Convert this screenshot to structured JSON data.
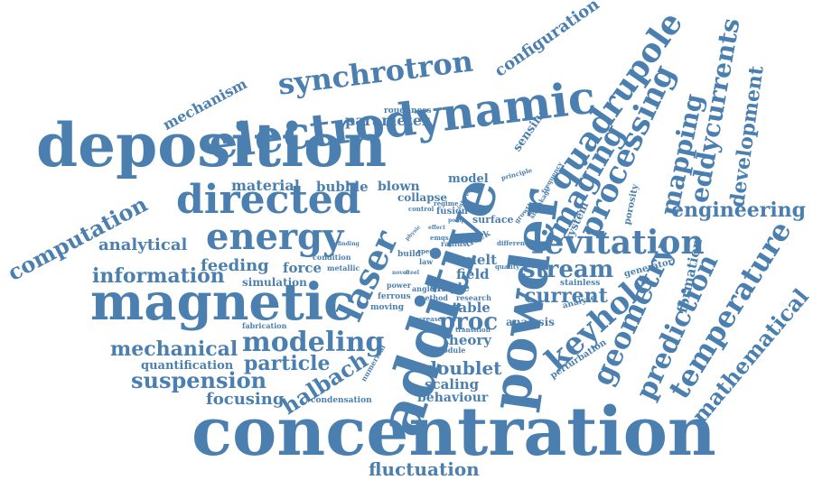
{
  "color": "#4a7fb0",
  "words": [
    {
      "text": "concentration",
      "size": 74
    },
    {
      "text": "deposition",
      "size": 66
    },
    {
      "text": "additive",
      "size": 66
    },
    {
      "text": "magnetic",
      "size": 56
    },
    {
      "text": "powder",
      "size": 60
    },
    {
      "text": "electrodynamic",
      "size": 50
    },
    {
      "text": "directed",
      "size": 44
    },
    {
      "text": "energy",
      "size": 40
    },
    {
      "text": "laser",
      "size": 38
    },
    {
      "text": "levitation",
      "size": 36
    },
    {
      "text": "quadrupole",
      "size": 36
    },
    {
      "text": "processing",
      "size": 34
    },
    {
      "text": "imaging",
      "size": 32
    },
    {
      "text": "synchrotron",
      "size": 32
    },
    {
      "text": "keyhole",
      "size": 34
    },
    {
      "text": "geometry",
      "size": 32
    },
    {
      "text": "temperature",
      "size": 32
    },
    {
      "text": "prediction",
      "size": 30
    },
    {
      "text": "modeling",
      "size": 30
    },
    {
      "text": "stream",
      "size": 26
    },
    {
      "text": "proc",
      "size": 26
    },
    {
      "text": "computation",
      "size": 24
    },
    {
      "text": "mapping",
      "size": 28
    },
    {
      "text": "eddycurrents",
      "size": 28
    },
    {
      "text": "mathematical",
      "size": 24
    },
    {
      "text": "development",
      "size": 22
    },
    {
      "text": "engineering",
      "size": 22
    },
    {
      "text": "suspension",
      "size": 24
    },
    {
      "text": "mechanical",
      "size": 22
    },
    {
      "text": "information",
      "size": 22
    },
    {
      "text": "particle",
      "size": 22
    },
    {
      "text": "halbach",
      "size": 24
    },
    {
      "text": "fluctuation",
      "size": 20
    },
    {
      "text": "current",
      "size": 22
    },
    {
      "text": "doublet",
      "size": 20
    },
    {
      "text": "configuration",
      "size": 18
    },
    {
      "text": "mechanism",
      "size": 16
    },
    {
      "text": "analytical",
      "size": 18
    },
    {
      "text": "feeding",
      "size": 18
    },
    {
      "text": "focusing",
      "size": 18
    },
    {
      "text": "parameter",
      "size": 16
    },
    {
      "text": "material",
      "size": 16
    },
    {
      "text": "bubble",
      "size": 15
    },
    {
      "text": "blown",
      "size": 14
    },
    {
      "text": "force",
      "size": 15
    },
    {
      "text": "scaling",
      "size": 15
    },
    {
      "text": "behaviour",
      "size": 14
    },
    {
      "text": "theory",
      "size": 15
    },
    {
      "text": "stable",
      "size": 15
    },
    {
      "text": "single",
      "size": 13
    },
    {
      "text": "field",
      "size": 15
    },
    {
      "text": "melt",
      "size": 15
    },
    {
      "text": "model",
      "size": 13
    },
    {
      "text": "formation",
      "size": 15
    },
    {
      "text": "sensing",
      "size": 13
    },
    {
      "text": "collapse",
      "size": 12
    },
    {
      "text": "quantification",
      "size": 13
    },
    {
      "text": "simulation",
      "size": 12
    },
    {
      "text": "analysis",
      "size": 12
    },
    {
      "text": "roughness",
      "size": 9
    },
    {
      "text": "system",
      "size": 12
    },
    {
      "text": "porosity",
      "size": 10
    },
    {
      "text": "surface",
      "size": 11
    },
    {
      "text": "fusion",
      "size": 10
    },
    {
      "text": "generator",
      "size": 10
    },
    {
      "text": "perturbation",
      "size": 10
    },
    {
      "text": "stainless",
      "size": 9
    },
    {
      "text": "analyse",
      "size": 9
    },
    {
      "text": "condition",
      "size": 8
    },
    {
      "text": "metallic",
      "size": 8
    },
    {
      "text": "ferrous",
      "size": 9
    },
    {
      "text": "moving",
      "size": 9
    },
    {
      "text": "fabrication",
      "size": 8
    },
    {
      "text": "condensation",
      "size": 9
    },
    {
      "text": "numerical",
      "size": 8
    },
    {
      "text": "power",
      "size": 8
    },
    {
      "text": "build",
      "size": 9
    },
    {
      "text": "law",
      "size": 8
    },
    {
      "text": "track",
      "size": 10
    },
    {
      "text": "radius",
      "size": 8
    },
    {
      "text": "speed",
      "size": 7
    },
    {
      "text": "angle",
      "size": 8
    },
    {
      "text": "method",
      "size": 8
    },
    {
      "text": "research",
      "size": 8
    },
    {
      "text": "increase",
      "size": 7
    },
    {
      "text": "transition",
      "size": 7
    },
    {
      "text": "module",
      "size": 8
    },
    {
      "text": "different",
      "size": 7
    },
    {
      "text": "quality",
      "size": 7
    },
    {
      "text": "principle",
      "size": 7
    },
    {
      "text": "growth",
      "size": 7
    },
    {
      "text": "shrinkage",
      "size": 7
    },
    {
      "text": "frequency",
      "size": 7
    },
    {
      "text": "control",
      "size": 7
    },
    {
      "text": "regime",
      "size": 7
    },
    {
      "text": "pomp",
      "size": 6
    },
    {
      "text": "interest",
      "size": 6
    },
    {
      "text": "physic",
      "size": 6
    },
    {
      "text": "effect",
      "size": 6
    },
    {
      "text": "finding",
      "size": 6
    },
    {
      "text": "emqs",
      "size": 7
    },
    {
      "text": "novel",
      "size": 6
    },
    {
      "text": "steel",
      "size": 6
    }
  ]
}
